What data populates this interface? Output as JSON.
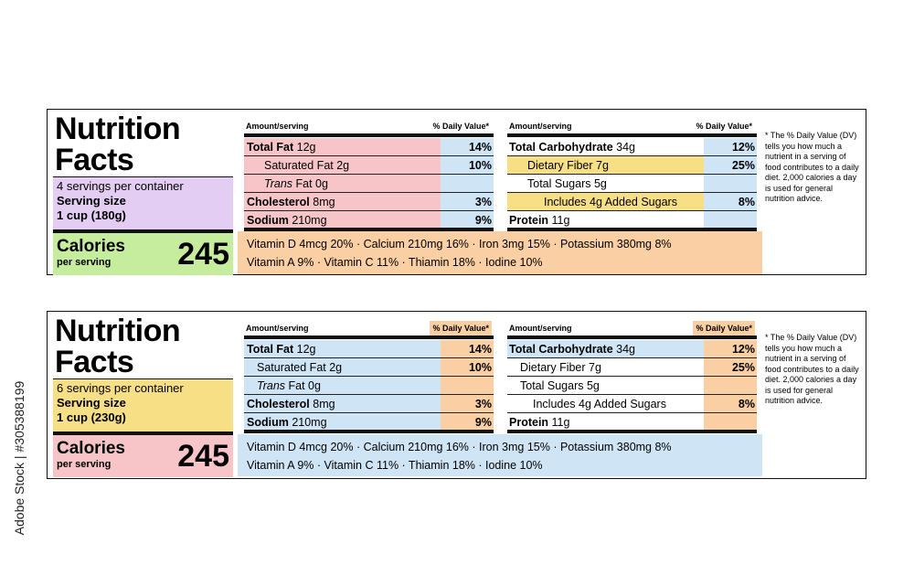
{
  "colors": {
    "pink": "#f7c5c8",
    "blue": "#cfe5f5",
    "yellow": "#f7df86",
    "purple": "#e3cdf3",
    "green": "#c6ec9e",
    "orange": "#f9cfa3"
  },
  "labels": [
    {
      "title_line1": "Nutrition",
      "title_line2": "Facts",
      "servings": "4 servings per container",
      "serving_size_label": "Serving size",
      "serving_size_value": "1 cup (180g)",
      "calories_label": "Calories",
      "calories_sub": "per serving",
      "calories_value": "245",
      "left_col": {
        "amount_header": "Amount/serving",
        "dv_header": "% Daily Value*",
        "rows": [
          {
            "name_bold": "Total Fat",
            "name": " 12g",
            "pct": "14%"
          },
          {
            "name_bold": "",
            "name": "Saturated Fat 2g",
            "pct": "10%"
          },
          {
            "name_italic": "Trans",
            "name": " Fat 0g",
            "pct": ""
          },
          {
            "name_bold": "Cholesterol",
            "name": " 8mg",
            "pct": "3%"
          },
          {
            "name_bold": "Sodium",
            "name": " 210mg",
            "pct": "9%"
          }
        ]
      },
      "right_col": {
        "amount_header": "Amount/serving",
        "dv_header": "% Daily Value*",
        "rows": [
          {
            "name_bold": "Total Carbohydrate",
            "name": " 34g",
            "pct": "12%"
          },
          {
            "name_bold": "",
            "name": "Dietary Fiber 7g",
            "pct": "25%"
          },
          {
            "name_bold": "",
            "name": "Total Sugars 5g",
            "pct": ""
          },
          {
            "name_bold": "",
            "name": "Includes 4g Added Sugars",
            "pct": "8%"
          },
          {
            "name_bold": "Protein",
            "name": " 11g",
            "pct": ""
          }
        ]
      },
      "vitamins_line1": "Vitamin D 4mcg 20% · Calcium 210mg 16% · Iron 3mg 15% · Potassium 380mg 8%",
      "vitamins_line2": "Vitamin A 9% · Vitamin C 11% · Thiamin 18% · Iodine 10%",
      "note": "* The % Daily Value (DV) tells you how much a nutrient in a serving of food contributes to a daily diet. 2,000 calories a day is used for general nutrition advice."
    },
    {
      "title_line1": "Nutrition",
      "title_line2": "Facts",
      "servings": "6 servings per container",
      "serving_size_label": "Serving size",
      "serving_size_value": "1 cup (230g)",
      "calories_label": "Calories",
      "calories_sub": "per serving",
      "calories_value": "245",
      "left_col": {
        "amount_header": "Amount/serving",
        "dv_header": "% Daily Value*",
        "rows": [
          {
            "name_bold": "Total Fat",
            "name": " 12g",
            "pct": "14%"
          },
          {
            "name_bold": "",
            "name": "Saturated Fat 2g",
            "pct": "10%"
          },
          {
            "name_italic": "Trans",
            "name": " Fat 0g",
            "pct": ""
          },
          {
            "name_bold": "Cholesterol",
            "name": " 8mg",
            "pct": "3%"
          },
          {
            "name_bold": "Sodium",
            "name": " 210mg",
            "pct": "9%"
          }
        ]
      },
      "right_col": {
        "amount_header": "Amount/serving",
        "dv_header": "% Daily Value*",
        "rows": [
          {
            "name_bold": "Total Carbohydrate",
            "name": " 34g",
            "pct": "12%"
          },
          {
            "name_bold": "",
            "name": "Dietary Fiber 7g",
            "pct": "25%"
          },
          {
            "name_bold": "",
            "name": "Total Sugars 5g",
            "pct": ""
          },
          {
            "name_bold": "",
            "name": "Includes 4g Added Sugars",
            "pct": "8%"
          },
          {
            "name_bold": "Protein",
            "name": " 11g",
            "pct": ""
          }
        ]
      },
      "vitamins_line1": "Vitamin D 4mcg 20% · Calcium 210mg 16% · Iron 3mg 15% · Potassium 380mg 8%",
      "vitamins_line2": "Vitamin A 9% · Vitamin C 11% · Thiamin 18% · Iodine 10%",
      "note": "* The % Daily Value (DV) tells you how much a nutrient in a serving of food contributes to a daily diet. 2,000 calories a day is used for general nutrition advice."
    }
  ],
  "stock_id": "Adobe Stock | #305388199"
}
